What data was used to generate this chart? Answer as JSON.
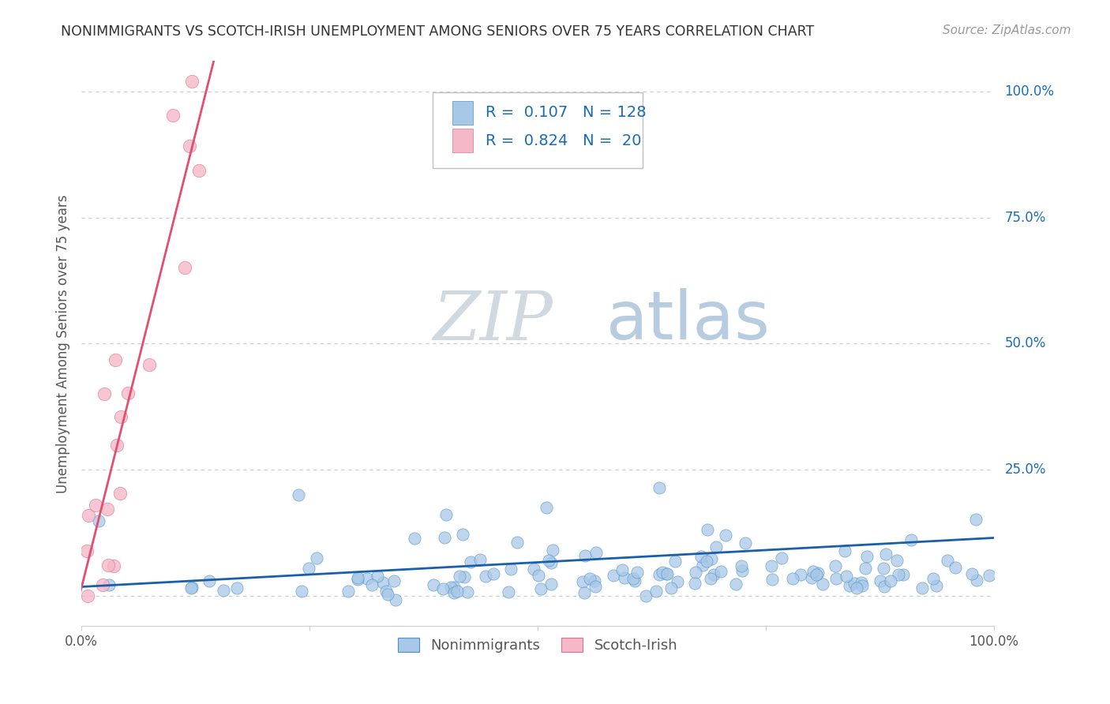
{
  "title": "NONIMMIGRANTS VS SCOTCH-IRISH UNEMPLOYMENT AMONG SENIORS OVER 75 YEARS CORRELATION CHART",
  "source": "Source: ZipAtlas.com",
  "ylabel": "Unemployment Among Seniors over 75 years",
  "nonimmigrant_R": 0.107,
  "nonimmigrant_N": 128,
  "scotch_irish_R": 0.824,
  "scotch_irish_N": 20,
  "blue_color": "#a8c8e8",
  "blue_edge_color": "#4a90c4",
  "pink_color": "#f4b8c8",
  "pink_edge_color": "#e07090",
  "blue_line_color": "#1a5faa",
  "pink_line_color": "#e05070",
  "title_color": "#333333",
  "source_color": "#999999",
  "axis_label_color": "#555555",
  "tick_color": "#555555",
  "legend_R_color": "#1a6cb5",
  "watermark_zip_color": "#d0d8e0",
  "watermark_atlas_color": "#b8cce0",
  "background_color": "#ffffff",
  "grid_color": "#cccccc",
  "xmin": 0.0,
  "xmax": 1.0,
  "ymin": -0.06,
  "ymax": 1.06
}
